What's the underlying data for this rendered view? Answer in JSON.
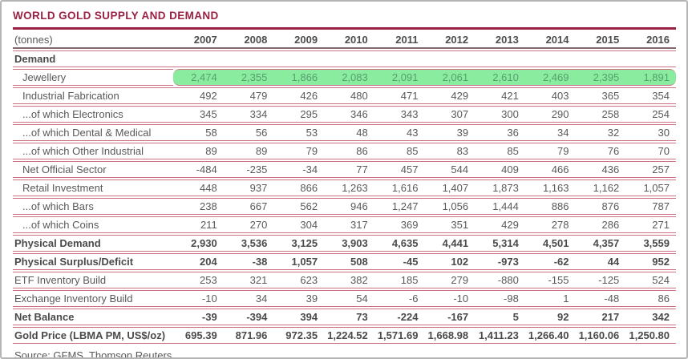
{
  "colors": {
    "title_maroon": "#9a2143",
    "row_rule_pink": "#cc7183",
    "header_rule": "#83686e",
    "text_gray": "#595959",
    "bold_text_gray": "#4a4a4a",
    "highlight_green": "#8aec9e",
    "highlight_text_green": "#56a06e",
    "outer_border_gray": "#b5b5b5"
  },
  "chart_data": {
    "type": "table",
    "title": "WORLD GOLD SUPPLY AND DEMAND",
    "unit": "(tonnes)",
    "columns": [
      "2007",
      "2008",
      "2009",
      "2010",
      "2011",
      "2012",
      "2013",
      "2014",
      "2015",
      "2016"
    ],
    "rows": [
      {
        "label": "Demand",
        "style": "section",
        "highlight": false,
        "values": []
      },
      {
        "label": "Jewellery",
        "style": "indent",
        "highlight": true,
        "values": [
          "2,474",
          "2,355",
          "1,866",
          "2,083",
          "2,091",
          "2,061",
          "2,610",
          "2,469",
          "2,395",
          "1,891"
        ]
      },
      {
        "label": "Industrial Fabrication",
        "style": "indent",
        "highlight": false,
        "values": [
          "492",
          "479",
          "426",
          "480",
          "471",
          "429",
          "421",
          "403",
          "365",
          "354"
        ]
      },
      {
        "label": "...of which Electronics",
        "style": "indent",
        "highlight": false,
        "values": [
          "345",
          "334",
          "295",
          "346",
          "343",
          "307",
          "300",
          "290",
          "258",
          "254"
        ]
      },
      {
        "label": "...of which Dental & Medical",
        "style": "indent",
        "highlight": false,
        "values": [
          "58",
          "56",
          "53",
          "48",
          "43",
          "39",
          "36",
          "34",
          "32",
          "30"
        ]
      },
      {
        "label": "...of which Other Industrial",
        "style": "indent",
        "highlight": false,
        "values": [
          "89",
          "89",
          "79",
          "86",
          "85",
          "83",
          "85",
          "79",
          "76",
          "70"
        ]
      },
      {
        "label": "Net Official Sector",
        "style": "indent",
        "highlight": false,
        "values": [
          "-484",
          "-235",
          "-34",
          "77",
          "457",
          "544",
          "409",
          "466",
          "436",
          "257"
        ]
      },
      {
        "label": "Retail Investment",
        "style": "indent",
        "highlight": false,
        "values": [
          "448",
          "937",
          "866",
          "1,263",
          "1,616",
          "1,407",
          "1,873",
          "1,163",
          "1,162",
          "1,057"
        ]
      },
      {
        "label": "...of which Bars",
        "style": "indent",
        "highlight": false,
        "values": [
          "238",
          "667",
          "562",
          "946",
          "1,247",
          "1,056",
          "1,444",
          "886",
          "876",
          "787"
        ]
      },
      {
        "label": "...of which Coins",
        "style": "indent",
        "highlight": false,
        "values": [
          "211",
          "270",
          "304",
          "317",
          "369",
          "351",
          "429",
          "278",
          "286",
          "271"
        ]
      },
      {
        "label": "Physical Demand",
        "style": "bold",
        "highlight": false,
        "values": [
          "2,930",
          "3,536",
          "3,125",
          "3,903",
          "4,635",
          "4,441",
          "5,314",
          "4,501",
          "4,357",
          "3,559"
        ]
      },
      {
        "label": "Physical Surplus/Deficit",
        "style": "bold",
        "highlight": false,
        "values": [
          "204",
          "-38",
          "1,057",
          "508",
          "-45",
          "102",
          "-973",
          "-62",
          "44",
          "952"
        ]
      },
      {
        "label": "ETF Inventory Build",
        "style": "normal",
        "highlight": false,
        "values": [
          "253",
          "321",
          "623",
          "382",
          "185",
          "279",
          "-880",
          "-155",
          "-125",
          "524"
        ]
      },
      {
        "label": "Exchange Inventory Build",
        "style": "normal",
        "highlight": false,
        "values": [
          "-10",
          "34",
          "39",
          "54",
          "-6",
          "-10",
          "-98",
          "1",
          "-48",
          "86"
        ]
      },
      {
        "label": "Net Balance",
        "style": "bold",
        "highlight": false,
        "values": [
          "-39",
          "-394",
          "394",
          "73",
          "-224",
          "-167",
          "5",
          "92",
          "217",
          "342"
        ]
      },
      {
        "label": "Gold Price (LBMA PM, US$/oz)",
        "style": "bold",
        "highlight": false,
        "values": [
          "695.39",
          "871.96",
          "972.35",
          "1,224.52",
          "1,571.69",
          "1,668.98",
          "1,411.23",
          "1,266.40",
          "1,160.06",
          "1,250.80"
        ]
      }
    ],
    "source": "Source: GFMS, Thomson Reuters"
  }
}
